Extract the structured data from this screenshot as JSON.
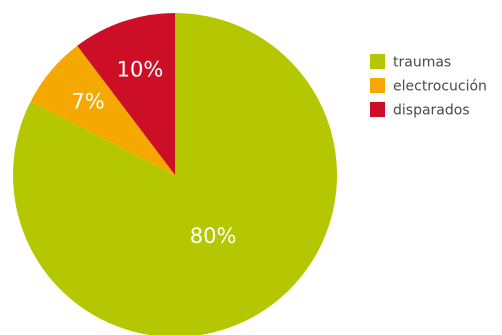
{
  "chart_data": {
    "type": "pie",
    "title": "",
    "slices": [
      {
        "label": "traumas",
        "value": 80,
        "display": "80%",
        "color": "#b5c700"
      },
      {
        "label": "electrocución",
        "value": 7,
        "display": "7%",
        "color": "#f5a800"
      },
      {
        "label": "disparados",
        "value": 10,
        "display": "10%",
        "color": "#cc0e26"
      }
    ],
    "start_angle_deg": 0,
    "direction": "clockwise",
    "legend_position": "right"
  }
}
